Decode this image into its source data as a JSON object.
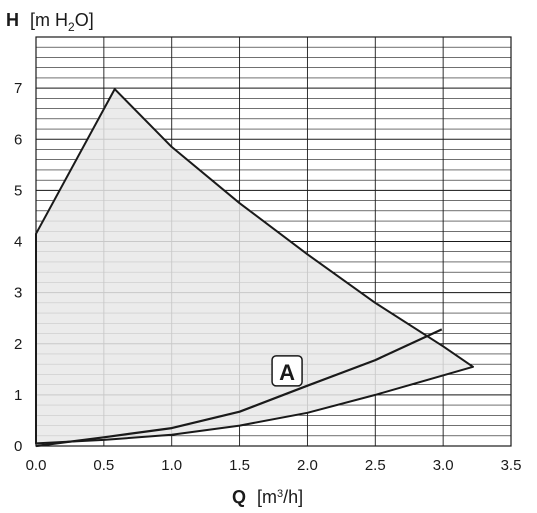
{
  "chart_data": {
    "type": "area",
    "title": "",
    "ylabel": {
      "symbol": "H",
      "unit_prefix": "[m H",
      "unit_sub": "2",
      "unit_suffix": "O]"
    },
    "xlabel": {
      "symbol": "Q",
      "unit_prefix": "[m",
      "unit_sup": "3",
      "unit_suffix": "/h]"
    },
    "xlim": [
      0,
      3.5
    ],
    "ylim": [
      0,
      8
    ],
    "xticks": [
      0.0,
      0.5,
      1.0,
      1.5,
      2.0,
      2.5,
      3.0,
      3.5
    ],
    "xtick_labels": [
      "0.0",
      "0.5",
      "1.0",
      "1.5",
      "2.0",
      "2.5",
      "3.0",
      "3.5"
    ],
    "yticks": [
      0,
      1,
      2,
      3,
      4,
      5,
      6,
      7
    ],
    "ytick_labels": [
      "0",
      "1",
      "2",
      "3",
      "4",
      "5",
      "6",
      "7"
    ],
    "grid": {
      "major_x": true,
      "major_y": true,
      "minor_y_step": 0.2
    },
    "operating_range": {
      "fill_color": "#e8e8e8",
      "points": [
        [
          0.0,
          0.05
        ],
        [
          0.0,
          4.15
        ],
        [
          0.58,
          6.98
        ],
        [
          1.0,
          5.85
        ],
        [
          1.5,
          4.75
        ],
        [
          2.0,
          3.75
        ],
        [
          2.5,
          2.8
        ],
        [
          3.0,
          1.95
        ],
        [
          3.22,
          1.55
        ],
        [
          2.5,
          1.0
        ],
        [
          2.0,
          0.65
        ],
        [
          1.5,
          0.4
        ],
        [
          1.0,
          0.22
        ],
        [
          0.5,
          0.12
        ],
        [
          0.0,
          0.05
        ]
      ]
    },
    "series": [
      {
        "name": "A",
        "color": "#1a1a1a",
        "points": [
          [
            0.0,
            0.0
          ],
          [
            0.5,
            0.17
          ],
          [
            1.0,
            0.35
          ],
          [
            1.5,
            0.67
          ],
          [
            2.0,
            1.18
          ],
          [
            2.5,
            1.68
          ],
          [
            2.99,
            2.28
          ]
        ]
      }
    ],
    "annotation": {
      "text": "A",
      "x": 1.85,
      "y": 1.45
    }
  }
}
